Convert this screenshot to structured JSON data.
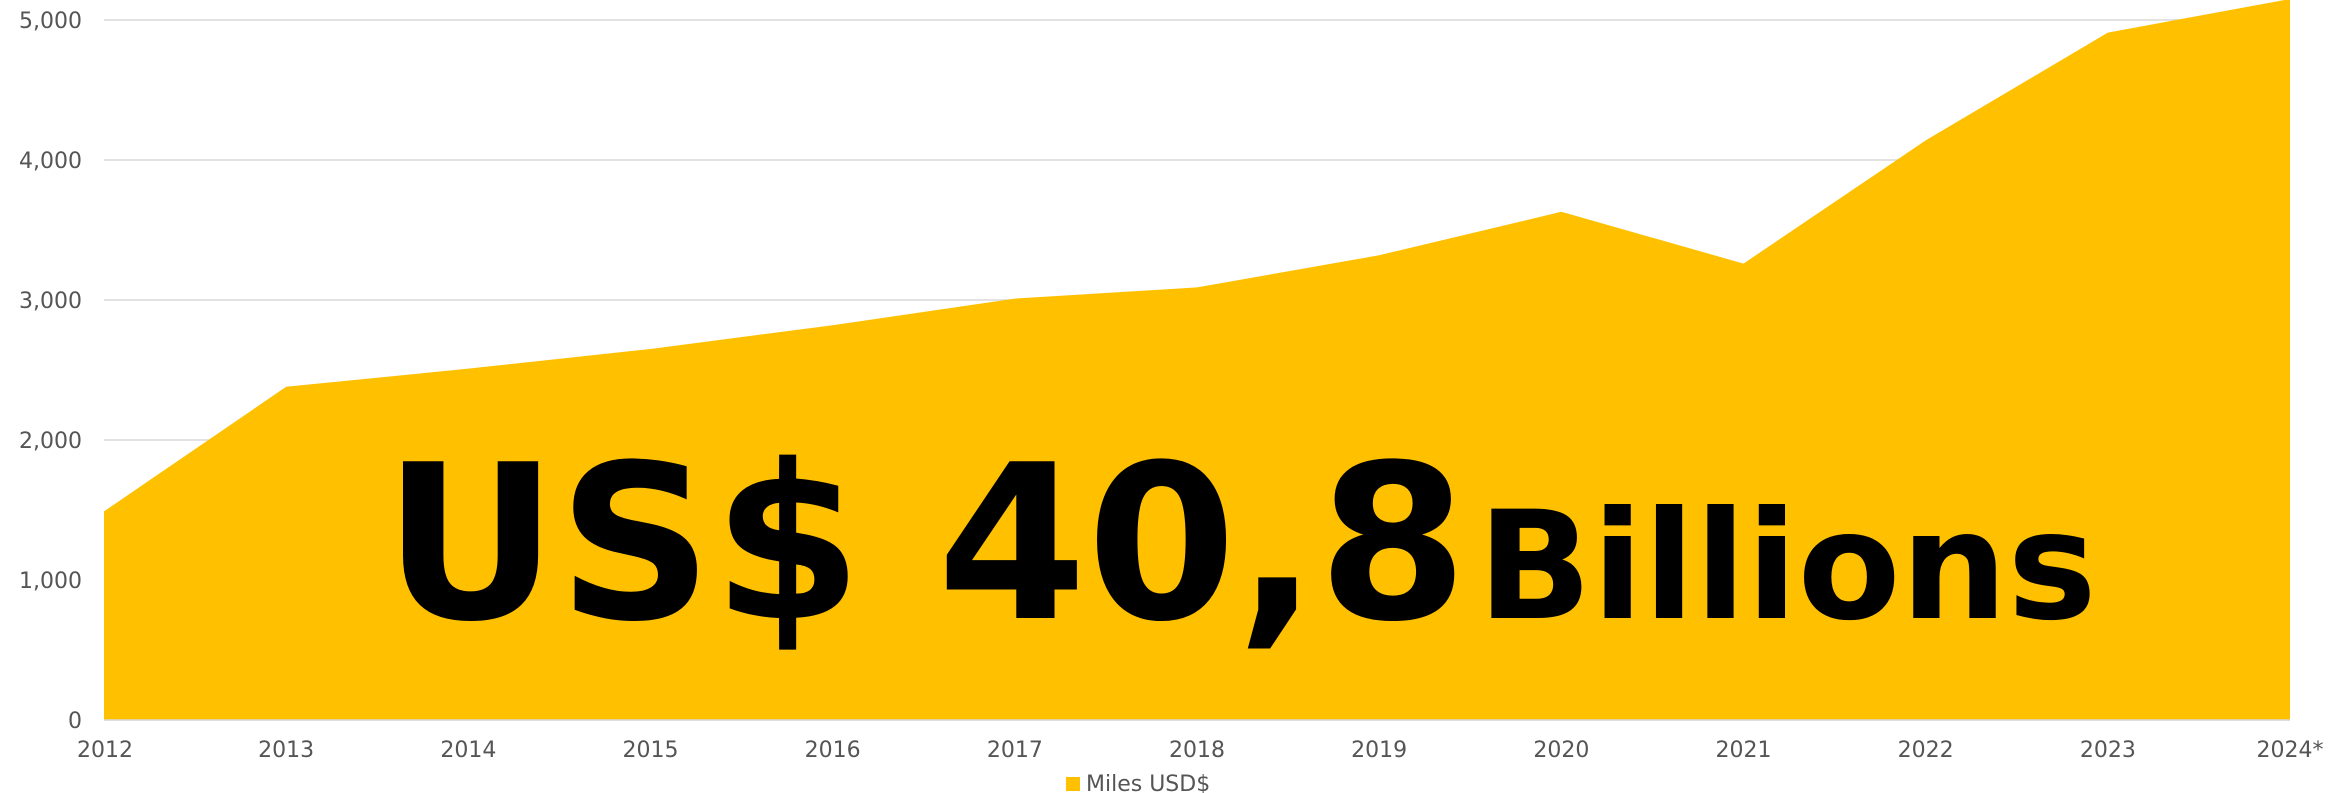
{
  "chart_data": {
    "type": "area",
    "categories": [
      "2012",
      "2013",
      "2014",
      "2015",
      "2016",
      "2017",
      "2018",
      "2019",
      "2020",
      "2021",
      "2022",
      "2023",
      "2024*"
    ],
    "series": [
      {
        "name": "Miles USD$",
        "color": "#FFC000",
        "values": [
          1490,
          2380,
          2510,
          2650,
          2820,
          3010,
          3090,
          3320,
          3630,
          3260,
          4140,
          4910,
          5150
        ]
      }
    ],
    "ylim": [
      0,
      5000
    ],
    "yticks": [
      "0",
      "1,000",
      "2,000",
      "3,000",
      "4,000",
      "5,000"
    ],
    "grid": true,
    "legend_position": "bottom-center",
    "annotation": {
      "amount": "US$ 40,8",
      "unit": "Billions"
    }
  },
  "colors": {
    "fill": "#FFC000",
    "grid": "#D9D9D9",
    "text": "#555555"
  }
}
